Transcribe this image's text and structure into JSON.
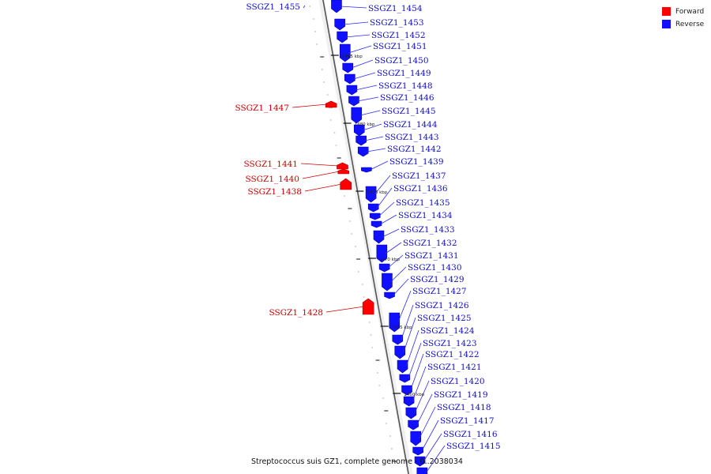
{
  "legend": {
    "forward_label": "Forward",
    "reverse_label": "Reverse",
    "forward_color": "#ff0000",
    "reverse_color": "#1010ff"
  },
  "caption": "Streptococcus suis GZ1, complete genome - 0..2038034",
  "scale_marks": [
    "1485 kbp",
    "1480 kbp",
    "1475 kbp",
    "1470 kbp",
    "1465 kbp",
    "1460 kbp"
  ],
  "forward_genes": [
    "SSGZ1_1455",
    "SSGZ1_1447",
    "SSGZ1_1441",
    "SSGZ1_1440",
    "SSGZ1_1438",
    "SSGZ1_1428"
  ],
  "reverse_genes": [
    "SSGZ1_1454",
    "SSGZ1_1453",
    "SSGZ1_1452",
    "SSGZ1_1451",
    "SSGZ1_1450",
    "SSGZ1_1449",
    "SSGZ1_1448",
    "SSGZ1_1446",
    "SSGZ1_1445",
    "SSGZ1_1444",
    "SSGZ1_1443",
    "SSGZ1_1442",
    "SSGZ1_1439",
    "SSGZ1_1437",
    "SSGZ1_1436",
    "SSGZ1_1435",
    "SSGZ1_1434",
    "SSGZ1_1433",
    "SSGZ1_1432",
    "SSGZ1_1431",
    "SSGZ1_1430",
    "SSGZ1_1429",
    "SSGZ1_1427",
    "SSGZ1_1426",
    "SSGZ1_1425",
    "SSGZ1_1424",
    "SSGZ1_1423",
    "SSGZ1_1422",
    "SSGZ1_1421",
    "SSGZ1_1420",
    "SSGZ1_1419",
    "SSGZ1_1418",
    "SSGZ1_1417",
    "SSGZ1_1416",
    "SSGZ1_1415"
  ]
}
